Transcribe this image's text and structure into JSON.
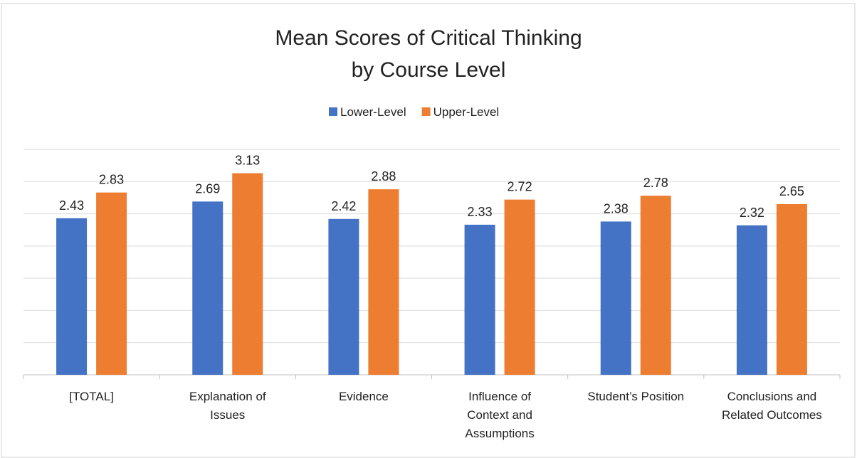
{
  "chart_data": {
    "type": "bar",
    "title": [
      "Mean Scores of Critical Thinking",
      "by Course Level"
    ],
    "categories": [
      "[TOTAL]",
      "Explanation of Issues",
      "Evidence",
      "Influence of Context and Assumptions",
      "Student’s Position",
      "Conclusions and Related Outcomes"
    ],
    "series": [
      {
        "name": "Lower-Level",
        "color": "#4472c4",
        "values": [
          2.43,
          2.69,
          2.42,
          2.33,
          2.38,
          2.32
        ]
      },
      {
        "name": "Upper-Level",
        "color": "#ed7d31",
        "values": [
          2.83,
          3.13,
          2.88,
          2.72,
          2.78,
          2.65
        ]
      }
    ],
    "ylim": [
      0,
      3.5
    ],
    "yticks": [
      0,
      0.5,
      1,
      1.5,
      2,
      2.5,
      3,
      3.5
    ],
    "y_tick_labels": false,
    "grid": true,
    "legend": "top"
  }
}
